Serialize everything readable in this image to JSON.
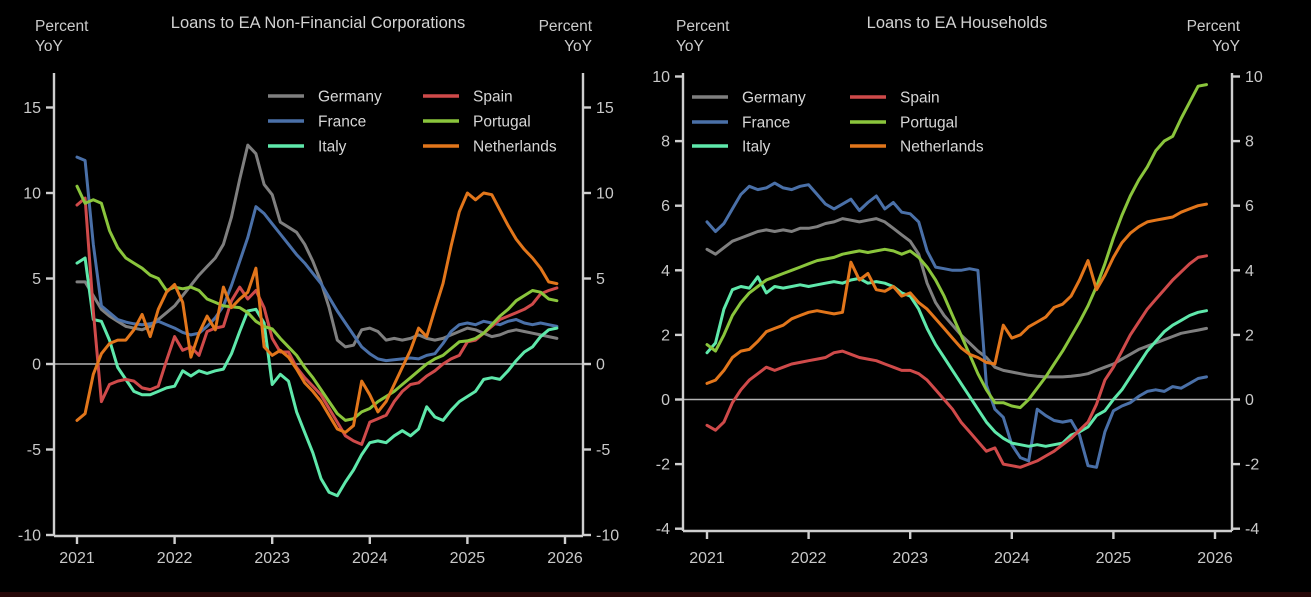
{
  "page": {
    "background": "#000000",
    "bottom_strip_color": "#260708"
  },
  "style_colors": {
    "axis": "#cfcfcf",
    "tick_label": "#c9c9c9",
    "title": "#d2d2d2",
    "legend_text": "#d6d6d6",
    "zero_line": "#b3b3b3"
  },
  "chart_data": [
    {
      "type": "line",
      "title": "Loans to EA Non-Financial Corporations",
      "unit": {
        "line1": "Percent",
        "line2": "YoY"
      },
      "ylim": [
        -10,
        15
      ],
      "yticks": [
        15,
        10,
        5,
        0,
        -5,
        -10
      ],
      "xticks": [
        2021,
        2022,
        2023,
        2024,
        2025,
        2026
      ],
      "x_unit": "month",
      "x_start_year": 2021,
      "zero_line": true,
      "grid": false,
      "legend_columns": [
        [
          "Germany",
          "France",
          "Italy"
        ],
        [
          "Spain",
          "Portugal",
          "Netherlands"
        ]
      ],
      "series": [
        {
          "name": "Germany",
          "color": "#7f7f7f",
          "values": [
            4.8,
            4.8,
            4.0,
            3.2,
            2.8,
            2.5,
            2.2,
            2.1,
            2.0,
            2.2,
            2.6,
            3.0,
            3.4,
            4.0,
            4.6,
            5.2,
            5.7,
            6.2,
            7.0,
            8.6,
            10.8,
            12.8,
            12.3,
            10.5,
            9.9,
            8.3,
            8.0,
            7.7,
            7.0,
            6.0,
            4.8,
            3.3,
            1.4,
            1.0,
            1.1,
            2.0,
            2.1,
            1.9,
            1.4,
            1.5,
            1.4,
            1.5,
            1.7,
            1.5,
            1.4,
            1.5,
            1.7,
            1.9,
            2.1,
            2.0,
            1.8,
            1.6,
            1.7,
            1.9,
            2.0,
            1.9,
            1.8,
            1.7,
            1.6,
            1.5
          ]
        },
        {
          "name": "France",
          "color": "#4a70a8",
          "values": [
            12.1,
            11.9,
            7.0,
            3.4,
            3.0,
            2.6,
            2.45,
            2.35,
            2.3,
            2.35,
            2.5,
            2.3,
            2.1,
            1.85,
            1.7,
            1.8,
            2.2,
            2.7,
            3.4,
            4.6,
            6.0,
            7.4,
            9.2,
            8.8,
            8.2,
            7.6,
            7.0,
            6.4,
            5.9,
            5.3,
            4.7,
            3.9,
            3.1,
            2.4,
            1.7,
            1.0,
            0.6,
            0.3,
            0.2,
            0.25,
            0.3,
            0.35,
            0.3,
            0.5,
            0.6,
            1.2,
            1.9,
            2.3,
            2.4,
            2.3,
            2.5,
            2.4,
            2.3,
            2.5,
            2.6,
            2.4,
            2.3,
            2.4,
            2.3,
            2.2
          ]
        },
        {
          "name": "Italy",
          "color": "#5fe8ab",
          "values": [
            5.9,
            6.2,
            2.6,
            2.5,
            1.4,
            -0.2,
            -0.9,
            -1.6,
            -1.8,
            -1.8,
            -1.6,
            -1.4,
            -1.3,
            -0.4,
            -0.7,
            -0.4,
            -0.55,
            -0.4,
            -0.3,
            0.6,
            1.9,
            3.1,
            3.2,
            2.4,
            -1.2,
            -0.6,
            -1.0,
            -2.8,
            -4.0,
            -5.2,
            -6.7,
            -7.5,
            -7.7,
            -6.9,
            -6.2,
            -5.3,
            -4.6,
            -4.5,
            -4.6,
            -4.2,
            -3.9,
            -4.2,
            -3.8,
            -2.5,
            -3.1,
            -3.3,
            -2.7,
            -2.2,
            -1.9,
            -1.6,
            -0.9,
            -0.8,
            -0.9,
            -0.4,
            0.2,
            0.7,
            1.0,
            1.6,
            2.0,
            2.1
          ]
        },
        {
          "name": "Spain",
          "color": "#cf4a4a",
          "values": [
            9.3,
            9.7,
            3.1,
            -2.2,
            -1.2,
            -1.0,
            -0.9,
            -1.0,
            -1.4,
            -1.5,
            -1.3,
            0.2,
            1.6,
            0.8,
            1.0,
            0.5,
            1.9,
            2.1,
            2.2,
            3.7,
            4.5,
            3.8,
            4.3,
            3.3,
            1.5,
            0.7,
            0.7,
            -0.2,
            -0.8,
            -1.3,
            -1.8,
            -2.6,
            -3.4,
            -4.2,
            -4.5,
            -4.7,
            -3.4,
            -3.2,
            -3.0,
            -2.2,
            -1.6,
            -1.2,
            -1.1,
            -0.7,
            -0.4,
            0.0,
            0.3,
            0.5,
            1.3,
            1.4,
            1.8,
            2.2,
            2.6,
            2.8,
            3.0,
            3.2,
            3.5,
            4.1,
            4.3,
            4.45
          ]
        },
        {
          "name": "Portugal",
          "color": "#8ac53c",
          "values": [
            10.4,
            9.4,
            9.6,
            9.4,
            7.8,
            6.8,
            6.2,
            5.9,
            5.6,
            5.2,
            5.0,
            4.3,
            4.5,
            4.4,
            4.5,
            4.3,
            3.8,
            3.6,
            3.4,
            3.35,
            3.3,
            3.0,
            2.5,
            2.2,
            2.05,
            1.5,
            1.0,
            0.5,
            -0.2,
            -0.8,
            -1.5,
            -2.2,
            -2.9,
            -3.3,
            -3.2,
            -2.8,
            -2.6,
            -2.2,
            -1.9,
            -1.6,
            -1.2,
            -0.8,
            -0.4,
            0.0,
            0.3,
            0.5,
            0.9,
            1.3,
            1.35,
            1.5,
            1.8,
            2.3,
            2.8,
            3.2,
            3.7,
            4.0,
            4.3,
            4.2,
            3.8,
            3.7
          ]
        },
        {
          "name": "Netherlands",
          "color": "#e2761b",
          "values": [
            -3.3,
            -2.9,
            -0.6,
            0.6,
            1.2,
            1.4,
            1.4,
            2.0,
            2.9,
            1.6,
            3.2,
            4.2,
            4.65,
            3.6,
            0.4,
            1.8,
            2.8,
            2.0,
            4.5,
            3.3,
            3.8,
            4.2,
            5.6,
            1.0,
            0.5,
            0.8,
            0.4,
            -0.3,
            -1.1,
            -1.6,
            -2.2,
            -3.0,
            -3.8,
            -4.0,
            -3.6,
            -1.0,
            -1.8,
            -2.8,
            -2.2,
            -1.2,
            -0.2,
            0.8,
            2.1,
            1.6,
            3.2,
            4.7,
            6.9,
            8.9,
            10.0,
            9.6,
            10.0,
            9.9,
            9.0,
            8.1,
            7.3,
            6.7,
            6.2,
            5.6,
            4.8,
            4.7
          ]
        }
      ]
    },
    {
      "type": "line",
      "title": "Loans to EA Households",
      "unit": {
        "line1": "Percent",
        "line2": "YoY"
      },
      "ylim": [
        -4,
        10
      ],
      "yticks": [
        10,
        8,
        6,
        4,
        2,
        0,
        -2,
        -4
      ],
      "xticks": [
        2021,
        2022,
        2023,
        2024,
        2025,
        2026
      ],
      "x_unit": "month",
      "x_start_year": 2021,
      "zero_line": true,
      "grid": false,
      "legend_columns": [
        [
          "Germany",
          "France",
          "Italy"
        ],
        [
          "Spain",
          "Portugal",
          "Netherlands"
        ]
      ],
      "series": [
        {
          "name": "Germany",
          "color": "#7f7f7f",
          "values": [
            4.65,
            4.5,
            4.7,
            4.9,
            5.0,
            5.1,
            5.2,
            5.25,
            5.2,
            5.25,
            5.2,
            5.3,
            5.3,
            5.35,
            5.45,
            5.5,
            5.6,
            5.55,
            5.5,
            5.55,
            5.6,
            5.5,
            5.3,
            5.1,
            4.9,
            4.5,
            3.6,
            3.0,
            2.6,
            2.3,
            2.0,
            1.75,
            1.5,
            1.3,
            1.0,
            0.9,
            0.85,
            0.8,
            0.75,
            0.72,
            0.7,
            0.7,
            0.7,
            0.72,
            0.75,
            0.8,
            0.9,
            1.0,
            1.1,
            1.25,
            1.4,
            1.55,
            1.65,
            1.75,
            1.85,
            1.95,
            2.05,
            2.1,
            2.15,
            2.2
          ]
        },
        {
          "name": "France",
          "color": "#4a70a8",
          "values": [
            5.5,
            5.2,
            5.45,
            5.9,
            6.35,
            6.6,
            6.5,
            6.55,
            6.7,
            6.55,
            6.5,
            6.6,
            6.65,
            6.35,
            6.05,
            5.9,
            6.05,
            6.2,
            5.85,
            6.1,
            6.3,
            5.9,
            6.1,
            5.8,
            5.75,
            5.5,
            4.6,
            4.1,
            4.05,
            4.0,
            4.0,
            4.05,
            4.0,
            0.45,
            -0.3,
            -0.55,
            -1.4,
            -1.8,
            -1.9,
            -0.3,
            -0.5,
            -0.65,
            -0.7,
            -0.65,
            -1.1,
            -2.05,
            -2.1,
            -1.0,
            -0.35,
            -0.2,
            -0.1,
            0.1,
            0.25,
            0.3,
            0.25,
            0.4,
            0.35,
            0.5,
            0.65,
            0.7
          ]
        },
        {
          "name": "Italy",
          "color": "#5fe8ab",
          "values": [
            1.45,
            1.75,
            2.8,
            3.4,
            3.5,
            3.45,
            3.8,
            3.3,
            3.5,
            3.45,
            3.5,
            3.55,
            3.5,
            3.55,
            3.6,
            3.65,
            3.6,
            3.7,
            3.75,
            3.6,
            3.65,
            3.6,
            3.5,
            3.3,
            3.2,
            2.8,
            2.2,
            1.7,
            1.3,
            0.9,
            0.5,
            0.1,
            -0.3,
            -0.7,
            -1.0,
            -1.2,
            -1.35,
            -1.4,
            -1.45,
            -1.4,
            -1.45,
            -1.4,
            -1.35,
            -1.1,
            -1.0,
            -0.85,
            -0.5,
            -0.35,
            0.0,
            0.3,
            0.7,
            1.1,
            1.5,
            1.8,
            2.1,
            2.3,
            2.45,
            2.6,
            2.7,
            2.75
          ]
        },
        {
          "name": "Spain",
          "color": "#cf4a4a",
          "values": [
            -0.8,
            -0.95,
            -0.7,
            -0.1,
            0.3,
            0.6,
            0.8,
            1.0,
            0.9,
            1.0,
            1.1,
            1.15,
            1.2,
            1.25,
            1.3,
            1.45,
            1.5,
            1.4,
            1.3,
            1.25,
            1.2,
            1.1,
            1.0,
            0.9,
            0.9,
            0.8,
            0.6,
            0.3,
            0.0,
            -0.3,
            -0.7,
            -1.0,
            -1.3,
            -1.6,
            -1.5,
            -2.0,
            -2.05,
            -2.1,
            -2.0,
            -1.9,
            -1.75,
            -1.6,
            -1.4,
            -1.2,
            -0.95,
            -0.7,
            -0.15,
            0.6,
            1.0,
            1.5,
            2.0,
            2.4,
            2.8,
            3.1,
            3.4,
            3.7,
            3.95,
            4.2,
            4.4,
            4.45
          ]
        },
        {
          "name": "Portugal",
          "color": "#8ac53c",
          "values": [
            1.7,
            1.5,
            2.0,
            2.6,
            3.0,
            3.3,
            3.5,
            3.7,
            3.8,
            3.9,
            4.0,
            4.1,
            4.2,
            4.3,
            4.35,
            4.4,
            4.5,
            4.55,
            4.6,
            4.55,
            4.6,
            4.65,
            4.6,
            4.5,
            4.6,
            4.4,
            4.1,
            3.7,
            3.2,
            2.6,
            2.0,
            1.4,
            0.8,
            0.3,
            -0.1,
            -0.1,
            -0.2,
            -0.25,
            0.0,
            0.35,
            0.7,
            1.1,
            1.5,
            1.95,
            2.4,
            2.9,
            3.5,
            4.2,
            5.0,
            5.7,
            6.3,
            6.8,
            7.2,
            7.7,
            8.0,
            8.15,
            8.7,
            9.2,
            9.7,
            9.75
          ]
        },
        {
          "name": "Netherlands",
          "color": "#e2761b",
          "values": [
            0.5,
            0.6,
            0.9,
            1.3,
            1.5,
            1.55,
            1.8,
            2.1,
            2.2,
            2.3,
            2.5,
            2.6,
            2.7,
            2.75,
            2.7,
            2.65,
            2.7,
            4.25,
            3.7,
            3.9,
            3.4,
            3.35,
            3.5,
            3.2,
            3.3,
            3.0,
            2.8,
            2.5,
            2.2,
            1.9,
            1.6,
            1.4,
            1.3,
            1.15,
            1.1,
            2.3,
            1.9,
            2.0,
            2.25,
            2.4,
            2.55,
            2.85,
            2.95,
            3.2,
            3.7,
            4.3,
            3.4,
            3.85,
            4.4,
            4.85,
            5.15,
            5.35,
            5.5,
            5.55,
            5.6,
            5.65,
            5.8,
            5.9,
            6.0,
            6.05
          ]
        }
      ]
    }
  ]
}
